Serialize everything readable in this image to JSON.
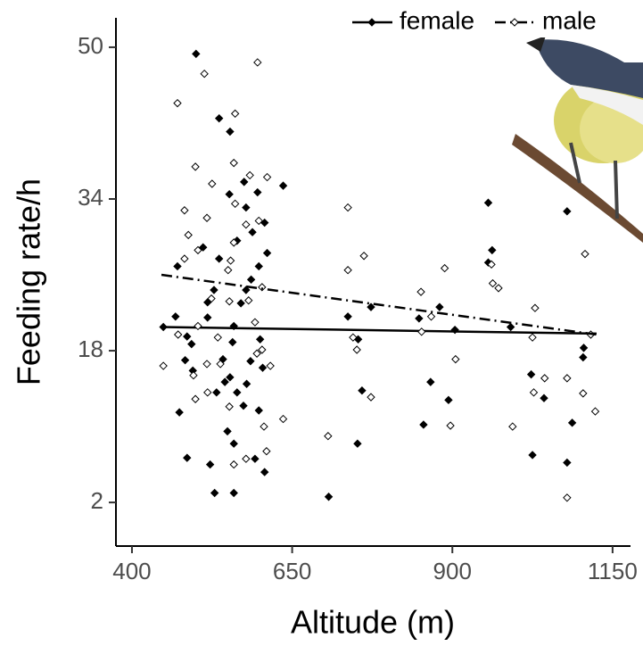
{
  "chart_data": {
    "type": "scatter",
    "x_label": "Altitude (m)",
    "y_label": "Feeding rate/h",
    "xlim": [
      375,
      1178
    ],
    "ylim": [
      -2.6,
      53.1
    ],
    "xticks": [
      400,
      650,
      900,
      1150
    ],
    "yticks": [
      2,
      18,
      34,
      50
    ],
    "legend": "top-right",
    "series": [
      {
        "name": "female",
        "color": "#000000",
        "filled": true,
        "line_style": "solid",
        "fit_x": [
          446,
          1125
        ],
        "fit_values": [
          20.5,
          19.8
        ],
        "x": [
          500,
          536,
          553,
          471,
          468,
          486,
          493,
          449,
          483,
          495,
          474,
          486,
          522,
          529,
          559,
          549,
          559,
          545,
          553,
          564,
          574,
          579,
          532,
          542,
          557,
          559,
          570,
          578,
          586,
          598,
          611,
          607,
          596,
          588,
          578,
          552,
          575,
          564,
          528,
          518,
          511,
          536,
          518,
          585,
          600,
          604,
          607,
          592,
          598,
          636,
          707,
          737,
          752,
          753,
          759,
          773,
          848,
          855,
          866,
          880,
          894,
          904,
          956,
          962,
          956,
          991,
          1023,
          1025,
          1043,
          1079,
          1079,
          1087,
          1104,
          1105
        ],
        "values": [
          49.3,
          42.5,
          41.1,
          26.9,
          21.6,
          19.5,
          18.7,
          20.5,
          17.0,
          15.9,
          11.5,
          6.7,
          6.0,
          3.0,
          3.0,
          9.5,
          8.2,
          14.7,
          15.2,
          13.6,
          12.2,
          14.5,
          13.6,
          17.1,
          18.9,
          20.6,
          23.0,
          24.4,
          25.5,
          26.9,
          28.3,
          31.5,
          34.7,
          30.5,
          33.1,
          34.5,
          35.8,
          29.6,
          24.4,
          23.1,
          28.9,
          27.7,
          21.5,
          16.9,
          19.2,
          16.2,
          5.2,
          6.6,
          11.7,
          35.4,
          2.6,
          21.6,
          8.2,
          19.2,
          13.8,
          22.6,
          21.4,
          10.2,
          14.7,
          22.6,
          12.8,
          20.2,
          33.6,
          28.6,
          27.3,
          20.5,
          15.5,
          7.0,
          13.0,
          6.2,
          32.7,
          10.4,
          17.3,
          18.3
        ]
      },
      {
        "name": "male",
        "color": "#000000",
        "filled": false,
        "line_style": "dash-dot",
        "fit_x": [
          446,
          1125
        ],
        "fit_values": [
          26.0,
          19.7
        ],
        "x": [
          471,
          513,
          561,
          596,
          559,
          584,
          611,
          598,
          578,
          559,
          554,
          550,
          524,
          552,
          582,
          603,
          482,
          488,
          503,
          482,
          517,
          499,
          525,
          561,
          534,
          517,
          538,
          496,
          518,
          499,
          449,
          472,
          503,
          552,
          559,
          578,
          610,
          606,
          616,
          603,
          592,
          595,
          636,
          706,
          737,
          737,
          745,
          751,
          773,
          762,
          851,
          852,
          867,
          888,
          905,
          897,
          961,
          963,
          972,
          994,
          1029,
          1025,
          1027,
          1044,
          1079,
          1079,
          1104,
          1107,
          1116,
          1123
        ],
        "values": [
          44.1,
          47.2,
          43.0,
          48.4,
          37.8,
          36.5,
          36.3,
          31.7,
          31.3,
          29.4,
          27.5,
          26.5,
          23.5,
          23.2,
          23.3,
          24.7,
          32.8,
          30.2,
          28.6,
          27.7,
          32.0,
          37.4,
          35.6,
          33.5,
          19.4,
          16.6,
          16.6,
          15.4,
          13.6,
          12.9,
          16.4,
          19.7,
          20.6,
          12.1,
          6.0,
          6.6,
          7.4,
          10.0,
          16.4,
          18.1,
          21.0,
          17.7,
          10.8,
          9.0,
          33.1,
          26.5,
          19.4,
          18.1,
          13.1,
          28.0,
          24.2,
          20.0,
          21.6,
          26.7,
          17.1,
          10.1,
          27.1,
          25.1,
          24.6,
          10.0,
          22.5,
          19.4,
          13.6,
          15.1,
          15.1,
          2.5,
          13.5,
          28.2,
          19.7,
          11.6
        ]
      }
    ]
  }
}
